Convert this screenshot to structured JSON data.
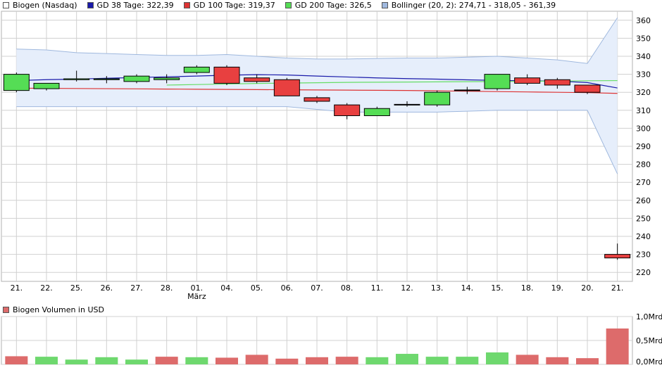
{
  "legend": {
    "main": "Biogen (Nasdaq)",
    "gd38": "GD 38 Tage: 322,39",
    "gd100": "GD 100 Tage: 319,37",
    "gd200": "GD 200 Tage: 326,5",
    "bollinger": "Bollinger (20, 2): 274,71 - 318,05 - 361,39",
    "volume": "Biogen Volumen in USD"
  },
  "colors": {
    "up": "#55dd55",
    "down": "#e84040",
    "gd38": "#1a1aaa",
    "gd100": "#dd3333",
    "gd200": "#66dd66",
    "bollinger_fill": "#e6eefb",
    "bollinger_line": "#9fb8de",
    "vol_up": "#6ed86e",
    "vol_down": "#dd6b6b",
    "grid": "#d0d0d0"
  },
  "chart_data": [
    {
      "type": "candlestick",
      "categories": [
        "21.",
        "22.",
        "25.",
        "26.",
        "27.",
        "28.",
        "01.",
        "04.",
        "05.",
        "06.",
        "07.",
        "08.",
        "11.",
        "12.",
        "13.",
        "14.",
        "15.",
        "18.",
        "19.",
        "20.",
        "21."
      ],
      "category_sublabels": {
        "6": "März"
      },
      "candles": [
        {
          "open": 321,
          "close": 330,
          "high": 331,
          "low": 320
        },
        {
          "open": 322,
          "close": 325,
          "high": 325,
          "low": 321
        },
        {
          "open": 327,
          "close": 327.5,
          "high": 332,
          "low": 326
        },
        {
          "open": 327,
          "close": 327.5,
          "high": 329,
          "low": 325
        },
        {
          "open": 326,
          "close": 329,
          "high": 330,
          "low": 325
        },
        {
          "open": 327,
          "close": 328,
          "high": 330,
          "low": 325
        },
        {
          "open": 331,
          "close": 334,
          "high": 335,
          "low": 330
        },
        {
          "open": 334,
          "close": 325,
          "high": 335,
          "low": 324
        },
        {
          "open": 328,
          "close": 326,
          "high": 330,
          "low": 325
        },
        {
          "open": 327,
          "close": 318,
          "high": 328,
          "low": 318
        },
        {
          "open": 317,
          "close": 315,
          "high": 318,
          "low": 314
        },
        {
          "open": 313,
          "close": 307,
          "high": 314,
          "low": 305
        },
        {
          "open": 307,
          "close": 311,
          "high": 312,
          "low": 307
        },
        {
          "open": 313,
          "close": 313.3,
          "high": 315,
          "low": 312
        },
        {
          "open": 313,
          "close": 320,
          "high": 321,
          "low": 312
        },
        {
          "open": 321,
          "close": 321.3,
          "high": 323,
          "low": 319
        },
        {
          "open": 322,
          "close": 330,
          "high": 330,
          "low": 321
        },
        {
          "open": 328,
          "close": 325,
          "high": 330,
          "low": 324
        },
        {
          "open": 327,
          "close": 324,
          "high": 328,
          "low": 322
        },
        {
          "open": 324,
          "close": 320,
          "high": 324,
          "low": 319
        },
        {
          "open": 230,
          "close": 228,
          "high": 236,
          "low": 227
        }
      ],
      "series": [
        {
          "name": "GD 38 Tage",
          "values": [
            326.5,
            327,
            327.3,
            327.8,
            328.2,
            328.6,
            329,
            329.5,
            329.8,
            329.6,
            329,
            328.5,
            328,
            327.6,
            327.3,
            326.9,
            326.6,
            326.4,
            326.2,
            325.4,
            322.4
          ]
        },
        {
          "name": "GD 100 Tage",
          "values": [
            322.3,
            322.2,
            322.1,
            322,
            321.9,
            321.8,
            321.7,
            321.6,
            321.5,
            321.4,
            321.3,
            321.2,
            321.1,
            321,
            320.8,
            320.6,
            320.4,
            320.2,
            320,
            319.8,
            319.4
          ]
        },
        {
          "name": "GD 200 Tage",
          "values": [
            null,
            null,
            null,
            null,
            null,
            324,
            324.3,
            324.6,
            324.9,
            325.1,
            325.3,
            325.5,
            325.6,
            325.7,
            325.8,
            325.9,
            326,
            326.1,
            326.2,
            326.4,
            326.5
          ]
        }
      ],
      "bollinger": {
        "upper": [
          344,
          343.5,
          342,
          341.5,
          341,
          340.5,
          340.5,
          341,
          340,
          339,
          338.5,
          338.5,
          338.8,
          339,
          339,
          339.5,
          340,
          339,
          338,
          336,
          361.4
        ],
        "lower": [
          312,
          312,
          312,
          312,
          312,
          312,
          312,
          312,
          312,
          312,
          310.5,
          309,
          309,
          309,
          309,
          309.5,
          310,
          310,
          310,
          310,
          274.7
        ]
      },
      "ylim": [
        215,
        365
      ],
      "yticks": [
        220,
        230,
        240,
        250,
        260,
        270,
        280,
        290,
        300,
        310,
        320,
        330,
        340,
        350,
        360
      ],
      "grid": true
    },
    {
      "type": "bar",
      "name": "Biogen Volumen in USD",
      "values": [
        0.17,
        0.16,
        0.1,
        0.15,
        0.1,
        0.16,
        0.15,
        0.14,
        0.2,
        0.12,
        0.15,
        0.16,
        0.15,
        0.22,
        0.16,
        0.16,
        0.25,
        0.2,
        0.15,
        0.13,
        0.75
      ],
      "directions": [
        "down",
        "up",
        "up",
        "up",
        "up",
        "down",
        "up",
        "down",
        "down",
        "down",
        "down",
        "down",
        "up",
        "up",
        "up",
        "up",
        "up",
        "down",
        "down",
        "down",
        "down"
      ],
      "yticks": [
        "0,0Mrd",
        "0,5Mrd",
        "1,0Mrd"
      ],
      "ytick_values": [
        0,
        0.5,
        1.0
      ],
      "ylim": [
        0,
        1.0
      ],
      "grid": true
    }
  ]
}
